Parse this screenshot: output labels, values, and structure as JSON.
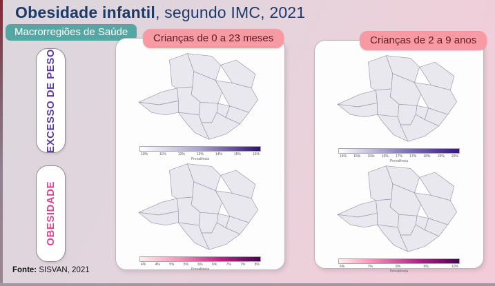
{
  "page": {
    "title_bold": "Obesidade infantil",
    "title_rest": ", segundo IMC, 2021",
    "subtitle_badge": "Macrorregiões de Saúde",
    "source_label": "Fonte:",
    "source_text": " SISVAN, 2021"
  },
  "columns": [
    {
      "header": "Crianças de 0 a 23 meses"
    },
    {
      "header": "Crianças de 2 a 9 anos"
    }
  ],
  "rows": [
    {
      "label": "EXCESSO DE PESO",
      "color": "#5b3a9e"
    },
    {
      "label": "OBESIDADE",
      "color": "#d8498f"
    }
  ],
  "colors": {
    "title": "#1d3968",
    "teal_badge_bg": "#56a7a4",
    "pink_badge_bg": "#f79aa4",
    "pink_badge_text": "#5f1b25",
    "panel_bg": "#fdfdfe",
    "background_left": "#dcd6dd",
    "background_right": "#f4cbd9"
  },
  "chart_data": [
    {
      "type": "choropleth",
      "row": "Excesso de peso",
      "column": "Crianças de 0 a 23 meses",
      "geography": "Macrorregiões de Saúde de Minas Gerais",
      "colorbar": {
        "label": "Prevalência",
        "gradient": [
          "#ffffff",
          "#a9a3ce",
          "#2d1168"
        ],
        "ticks": [
          "10%",
          "11%",
          "12%",
          "13%",
          "14%",
          "15%",
          "16%"
        ]
      },
      "regions": [
        {
          "name": "triangulo-do-norte",
          "color": "#f3f2f8"
        },
        {
          "name": "triangulo-do-sul",
          "color": "#fbfbfd"
        },
        {
          "name": "noroeste",
          "color": "#b9b3d6"
        },
        {
          "name": "norte",
          "color": "#aaa4ce"
        },
        {
          "name": "nordeste",
          "color": "#6b51b1"
        },
        {
          "name": "jequitinhonha",
          "color": "#31176e"
        },
        {
          "name": "centro",
          "color": "#dedbec"
        },
        {
          "name": "oeste",
          "color": "#e8e6f2"
        },
        {
          "name": "vale-do-aco",
          "color": "#9d95c7"
        },
        {
          "name": "leste",
          "color": "#4b2f97"
        },
        {
          "name": "centro-sul",
          "color": "#8d84be"
        },
        {
          "name": "sul",
          "color": "#edebf4"
        },
        {
          "name": "sudeste",
          "color": "#7a6fb2"
        }
      ]
    },
    {
      "type": "choropleth",
      "row": "Obesidade",
      "column": "Crianças de 0 a 23 meses",
      "geography": "Macrorregiões de Saúde de Minas Gerais",
      "colorbar": {
        "label": "Prevalência",
        "gradient": [
          "#fdf0e9",
          "#f291b4",
          "#c02286",
          "#43074e"
        ],
        "ticks": [
          "4%",
          "4%",
          "5%",
          "5%",
          "6%",
          "6%",
          "7%",
          "7%",
          "8%"
        ]
      },
      "regions": [
        {
          "name": "triangulo-do-norte",
          "color": "#f7e9e0"
        },
        {
          "name": "triangulo-do-sul",
          "color": "#faf0ea"
        },
        {
          "name": "noroeste",
          "color": "#f089af"
        },
        {
          "name": "norte",
          "color": "#ee7ea9"
        },
        {
          "name": "nordeste",
          "color": "#601267"
        },
        {
          "name": "jequitinhonha",
          "color": "#420a50"
        },
        {
          "name": "centro",
          "color": "#f3d0ca"
        },
        {
          "name": "oeste",
          "color": "#f6dcd4"
        },
        {
          "name": "vale-do-aco",
          "color": "#c43d8b"
        },
        {
          "name": "leste",
          "color": "#6d1271"
        },
        {
          "name": "centro-sul",
          "color": "#d44a94"
        },
        {
          "name": "sul",
          "color": "#f8e8e0"
        },
        {
          "name": "sudeste",
          "color": "#e2609f"
        }
      ]
    },
    {
      "type": "choropleth",
      "row": "Excesso de peso",
      "column": "Crianças de 2 a 9 anos",
      "geography": "Macrorregiões de Saúde de Minas Gerais",
      "colorbar": {
        "label": "Prevalência",
        "gradient": [
          "#ffffff",
          "#8b82c0",
          "#34177c"
        ],
        "ticks": [
          "14%",
          "15%",
          "15%",
          "16%",
          "17%",
          "17%",
          "18%",
          "19%",
          "20%"
        ]
      },
      "regions": [
        {
          "name": "triangulo-do-norte",
          "color": "#8b82c0"
        },
        {
          "name": "triangulo-do-sul",
          "color": "#c8c4df"
        },
        {
          "name": "noroeste",
          "color": "#5a3fa6"
        },
        {
          "name": "norte",
          "color": "#dedbeb"
        },
        {
          "name": "nordeste",
          "color": "#f6f5fa"
        },
        {
          "name": "jequitinhonha",
          "color": "#a49bce"
        },
        {
          "name": "centro",
          "color": "#42268f"
        },
        {
          "name": "oeste",
          "color": "#8a80bf"
        },
        {
          "name": "vale-do-aco",
          "color": "#6d5bad"
        },
        {
          "name": "leste",
          "color": "#5f47a8"
        },
        {
          "name": "centro-sul",
          "color": "#7a6db6"
        },
        {
          "name": "sul",
          "color": "#3f2491"
        },
        {
          "name": "sudeste",
          "color": "#553aa1"
        }
      ]
    },
    {
      "type": "choropleth",
      "row": "Obesidade",
      "column": "Crianças de 2 a 9 anos",
      "geography": "Macrorregiões de Saúde de Minas Gerais",
      "colorbar": {
        "label": "Prevalência",
        "gradient": [
          "#fdf0e9",
          "#ee7fae",
          "#b02285",
          "#43074e"
        ],
        "ticks": [
          "6%",
          "7%",
          "8%",
          "9%",
          "10%"
        ]
      },
      "regions": [
        {
          "name": "triangulo-do-norte",
          "color": "#ee7fae"
        },
        {
          "name": "triangulo-do-sul",
          "color": "#f4a8c4"
        },
        {
          "name": "noroeste",
          "color": "#6b0c72"
        },
        {
          "name": "norte",
          "color": "#f8ddd8"
        },
        {
          "name": "nordeste",
          "color": "#fdf4f0"
        },
        {
          "name": "jequitinhonha",
          "color": "#5e0b66"
        },
        {
          "name": "centro",
          "color": "#8c1278"
        },
        {
          "name": "oeste",
          "color": "#7c0e6f"
        },
        {
          "name": "vale-do-aco",
          "color": "#931a7b"
        },
        {
          "name": "leste",
          "color": "#7e0e73"
        },
        {
          "name": "centro-sul",
          "color": "#d84a9a"
        },
        {
          "name": "sul",
          "color": "#6f0a68"
        },
        {
          "name": "sudeste",
          "color": "#a01b7e"
        }
      ]
    }
  ]
}
